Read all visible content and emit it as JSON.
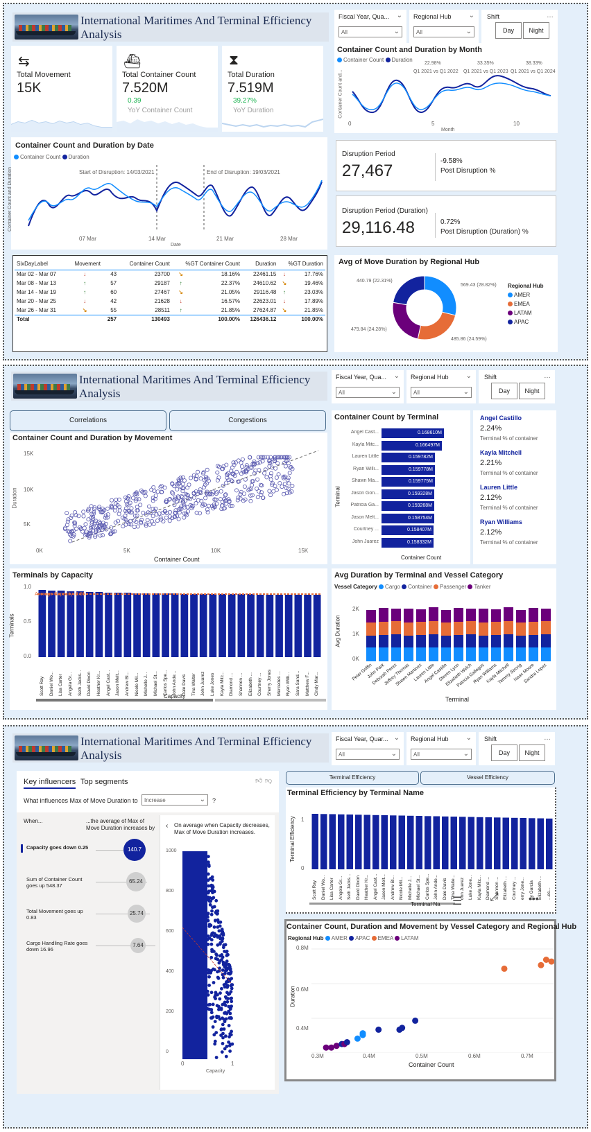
{
  "report_title": "International Maritimes And Terminal Efficiency Analysis",
  "filters": {
    "fiscal_label": "Fiscal Year, Qua...",
    "fiscal_label_p3": "Fiscal Year, Quar...",
    "hub_label": "Regional Hub",
    "all": "All",
    "shift_label": "Shift",
    "day": "Day",
    "night": "Night"
  },
  "p1": {
    "kpis": [
      {
        "label": "Total Movement",
        "value": "15K",
        "icon": "arrows-icon"
      },
      {
        "label": "Total Container Count",
        "value": "7.520M",
        "delta": "0.39",
        "sub": "YoY Container Count",
        "icon": "ship-icon"
      },
      {
        "label": "Total Duration",
        "value": "7.519M",
        "delta": "39.27%",
        "sub": "YoY Duration",
        "icon": "hourglass-icon"
      }
    ],
    "month_chart": {
      "title": "Container Count and Duration by Month",
      "legend": [
        "Container Count",
        "Duration"
      ],
      "yaxis": "Container Count and...",
      "xaxis": "Month",
      "xticks": [
        "0",
        "5",
        "10"
      ],
      "annots": [
        {
          "pct": "22.98%",
          "txt": "Q1 2021 vs Q1 2022"
        },
        {
          "pct": "33.35%",
          "txt": "Q1 2021 vs Q1 2023"
        },
        {
          "pct": "38.33%",
          "txt": "Q1 2021 vs Q1 2024"
        }
      ]
    },
    "date_chart": {
      "title": "Container Count and Duration by Date",
      "legend": [
        "Container Count",
        "Duration"
      ],
      "yaxis": "Container Count and Duration",
      "xaxis": "Date",
      "xticks": [
        "07 Mar",
        "14 Mar",
        "21 Mar",
        "28 Mar"
      ],
      "start": "Start of Disruption: 14/03/2021",
      "end": "End of Disruption: 19/03/2021"
    },
    "disrupt1": {
      "label": "Disruption Period",
      "value": "27,467",
      "pct": "-9.58%",
      "sub": "Post Disruption %"
    },
    "disrupt2": {
      "label": "Disruption Period (Duration)",
      "value": "29,116.48",
      "pct": "0.72%",
      "sub": "Post Disruption (Duration) %"
    },
    "table": {
      "headers": [
        "SixDayLabel",
        "Movement",
        "Container Count",
        "%GT Container Count",
        "Duration",
        "%GT Duration"
      ],
      "rows": [
        {
          "label": "Mar 02 - Mar 07",
          "m_dir": "dn",
          "mov": "43",
          "cc": "23700",
          "cc_dir": "side",
          "ccp": "18.16%",
          "dur": "22461.15",
          "d_dir": "dn",
          "dp": "17.76%"
        },
        {
          "label": "Mar 08 - Mar 13",
          "m_dir": "up",
          "mov": "57",
          "cc": "29187",
          "cc_dir": "up",
          "ccp": "22.37%",
          "dur": "24610.62",
          "d_dir": "side",
          "dp": "19.46%"
        },
        {
          "label": "Mar 14 - Mar 19",
          "m_dir": "up",
          "mov": "60",
          "cc": "27467",
          "cc_dir": "side",
          "ccp": "21.05%",
          "dur": "29116.48",
          "d_dir": "up",
          "dp": "23.03%"
        },
        {
          "label": "Mar 20 - Mar 25",
          "m_dir": "dn",
          "mov": "42",
          "cc": "21628",
          "cc_dir": "dn",
          "ccp": "16.57%",
          "dur": "22623.01",
          "d_dir": "dn",
          "dp": "17.89%"
        },
        {
          "label": "Mar 26 - Mar 31",
          "m_dir": "side",
          "mov": "55",
          "cc": "28511",
          "cc_dir": "up",
          "ccp": "21.85%",
          "dur": "27624.87",
          "d_dir": "side",
          "dp": "21.85%"
        }
      ],
      "total": {
        "label": "Total",
        "mov": "257",
        "cc": "130493",
        "ccp": "100.00%",
        "dur": "126436.12",
        "dp": "100.00%"
      }
    },
    "donut": {
      "title": "Avg of Move Duration by Regional Hub",
      "legend_title": "Regional Hub",
      "labels": [
        "569.43 (28.82%)",
        "485.86 (24.59%)",
        "479.84 (24.28%)",
        "440.79 (22.31%)"
      ],
      "hubs": [
        "AMER",
        "EMEA",
        "LATAM",
        "APAC"
      ],
      "values": [
        569.43,
        485.86,
        479.84,
        440.79
      ],
      "colors": [
        "#118dff",
        "#e66c37",
        "#6b007b",
        "#12239e"
      ]
    }
  },
  "p2": {
    "tabs": [
      "Correlations",
      "Congestions"
    ],
    "scatter": {
      "title": "Container Count and Duration by Movement",
      "xaxis": "Container Count",
      "yaxis": "Duration",
      "xticks": [
        "0K",
        "5K",
        "10K",
        "15K"
      ],
      "yticks": [
        "15K",
        "10K",
        "5K"
      ]
    },
    "terminal_bars": {
      "title": "Container Count by Terminal",
      "yaxis": "Terminal",
      "xaxis": "Container Count",
      "names": [
        "Angel Cast...",
        "Kayla Mitc...",
        "Lauren Little",
        "Ryan Willi...",
        "Shawn Ma...",
        "Jason Gon...",
        "Patricia Ga...",
        "Jason Melt...",
        "Courtney ...",
        "John Juarez"
      ],
      "values": [
        "0.168610M",
        "0.166497M",
        "0.159782M",
        "0.159778M",
        "0.159775M",
        "0.159328M",
        "0.159268M",
        "0.158754M",
        "0.158407M",
        "0.158332M"
      ],
      "nums": [
        0.16861,
        0.166497,
        0.159782,
        0.159778,
        0.159775,
        0.159328,
        0.159268,
        0.158754,
        0.158407,
        0.158332
      ]
    },
    "cards": [
      {
        "name": "Angel Castillo",
        "pct": "2.24%",
        "sub": "Terminal % of container"
      },
      {
        "name": "Kayla Mitchell",
        "pct": "2.21%",
        "sub": "Terminal % of container"
      },
      {
        "name": "Lauren Little",
        "pct": "2.12%",
        "sub": "Terminal % of container"
      },
      {
        "name": "Ryan Williams",
        "pct": "2.12%",
        "sub": "Terminal % of container"
      }
    ],
    "capacity": {
      "title": "Terminals by Capacity",
      "yaxis": "Terminals",
      "xaxis": "Capacity",
      "yticks": [
        "1.0",
        "0.5",
        "0.0"
      ],
      "avg_label": "Average Capacity: 0.91",
      "names": [
        "Scott Ray",
        "Daniel Wo...",
        "Lisa Carter",
        "Angela Gr...",
        "Seth Jacks...",
        "David Dixon",
        "Heather Kr...",
        "Angel Cast...",
        "Jason Melt...",
        "Andrew Bl...",
        "Nicole Mil...",
        "Michelle J...",
        "Michael St...",
        "Carlos Spe...",
        "John Ande...",
        "Dale Davis",
        "Tina Walter",
        "John Juarez",
        "Luke Jones",
        "Kayla Mitc...",
        "Diamond ...",
        "Shannon ...",
        "Elizabeth ...",
        "Courtney ...",
        "Sherry Jones",
        "Mercedes ...",
        "Ryan Willi...",
        "Sara Sand...",
        "Matthew F...",
        "Cindy Mar..."
      ],
      "values": [
        0.97,
        0.96,
        0.96,
        0.95,
        0.95,
        0.94,
        0.94,
        0.93,
        0.93,
        0.93,
        0.92,
        0.92,
        0.92,
        0.92,
        0.92,
        0.91,
        0.91,
        0.91,
        0.91,
        0.91,
        0.91,
        0.91,
        0.91,
        0.9,
        0.9,
        0.9,
        0.9,
        0.9,
        0.9,
        0.9
      ]
    },
    "stacked": {
      "title": "Avg Duration by Terminal and Vessel Category",
      "legend_title": "Vessel Category",
      "series": [
        "Cargo",
        "Container",
        "Passenger",
        "Tanker"
      ],
      "colors": [
        "#118dff",
        "#12239e",
        "#e66c37",
        "#6b007b"
      ],
      "yaxis": "Avg Duration",
      "xaxis": "Terminal",
      "yticks": [
        "2K",
        "1K",
        "0K"
      ],
      "names": [
        "Peter Griffin",
        "John Park",
        "Deborah Perez",
        "Jeffrey Thomas",
        "Shawn Martinez",
        "Lauren Little",
        "Angel Castillo",
        "Steven Lynn",
        "Elizabeth Welch",
        "Patricia Gallegos",
        "Ryan Williams",
        "Kayla Mitchell",
        "Tammy Strong",
        "Isaac Moore",
        "Sandra Lopez"
      ]
    }
  },
  "p3": {
    "ki_tabs": [
      "Key influencers",
      "Top segments"
    ],
    "question": "What influences Max of Move Duration to",
    "dropdown": "Increase",
    "q": "?",
    "col_when": "When...",
    "col_avg": "...the average of Max of Move Duration increases by",
    "influencers": [
      {
        "text": "Capacity goes down 0.25",
        "value": "140.7"
      },
      {
        "text": "Sum of Container Count goes up 548.37",
        "value": "65.24"
      },
      {
        "text": "Total Movement goes up 0.83",
        "value": "25.74"
      },
      {
        "text": "Cargo Handling Rate goes down 16.96",
        "value": "7.64"
      }
    ],
    "detail": "On average when Capacity decreases, Max of Move Duration increases.",
    "detail_y": [
      "1000",
      "800",
      "600",
      "400",
      "200",
      "0"
    ],
    "detail_x": [
      "0",
      "1"
    ],
    "detail_xaxis": "Capacity",
    "tabs": [
      "Terminal Efficiency",
      "Vessel Efficiency"
    ],
    "eff": {
      "title": "Terminal Efficiency by Terminal Name",
      "yaxis": "Terminal Efficiency",
      "xaxis": "Terminal Na",
      "yticks": [
        "1",
        "0"
      ],
      "names": [
        "Scott Ray",
        "Daniel Wo...",
        "Lisa Carter",
        "Angela Gr...",
        "Seth Jacks...",
        "David Dixon",
        "Heather Kr...",
        "Angel Cast...",
        "Jason Melt...",
        "Andrew Bl...",
        "Nicole Mil...",
        "Michelle J...",
        "Michael St...",
        "Carlos Spe...",
        "John Ande...",
        "Dale Davis",
        "Tina Walte...",
        "ohn Juarez",
        "Luke Jone...",
        "Kayla Mitc...",
        "Diamond ...",
        "Shannon ...",
        "Elizabeth ...",
        "Courtney ...",
        "erry Jone...",
        "ny Garcia",
        "Elizabeth ...",
        "...es..."
      ]
    },
    "bubble": {
      "title": "Container Count, Duration and Movement by Vessel Category and Regional Hub",
      "legend_title": "Regional Hub",
      "legend": [
        "AMER",
        "APAC",
        "EMEA",
        "LATAM"
      ],
      "colors": [
        "#118dff",
        "#12239e",
        "#e66c37",
        "#6b007b"
      ],
      "yaxis": "Duration",
      "xaxis": "Container Count",
      "yticks": [
        "0.8M",
        "0.6M",
        "0.4M"
      ],
      "xticks": [
        "0.3M",
        "0.4M",
        "0.5M",
        "0.6M",
        "0.7M"
      ]
    }
  }
}
